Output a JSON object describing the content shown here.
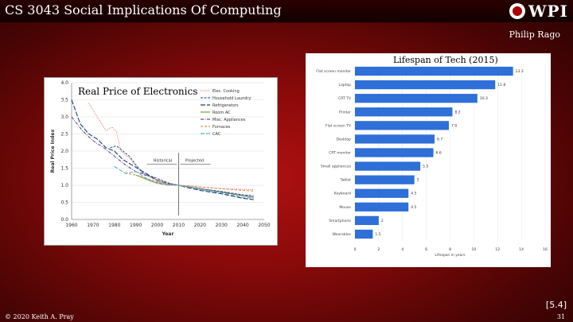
{
  "header": {
    "course_title": "CS 3043 Social Implications Of Computing",
    "logo_text": "WPI"
  },
  "author": "Philip Rago",
  "left_chart_caption": "Real Price of Electronics",
  "right_chart_caption": "Lifespan of Tech (2015)",
  "reference": "[5.4]",
  "footer": {
    "copyright": "© 2020 Keith A. Pray",
    "page_number": "31"
  },
  "chart_data": [
    {
      "type": "line",
      "title": "Real Price of Electronics",
      "xlabel": "Year",
      "ylabel": "Real Price Index",
      "xlim": [
        1960,
        2050
      ],
      "ylim": [
        0.0,
        4.0
      ],
      "x_ticks": [
        "1960",
        "1970",
        "1980",
        "1990",
        "2000",
        "2010",
        "2020",
        "2030",
        "2040",
        "2050"
      ],
      "y_ticks": [
        "0.0",
        "0.5",
        "1.0",
        "1.5",
        "2.0",
        "2.5",
        "3.0",
        "3.5",
        "4.0"
      ],
      "annotations": [
        "Historical",
        "Projected"
      ],
      "divider_x": 2010,
      "legend_position": "top-right",
      "series": [
        {
          "name": "Elec. Cooking",
          "color": "#e07060",
          "dash": "1,1.5",
          "x": [
            1968,
            1972,
            1976,
            1979,
            1981,
            1983,
            1987,
            1991,
            1995,
            1999,
            2003,
            2007,
            2010,
            2015,
            2020,
            2030,
            2040,
            2045
          ],
          "y": [
            3.4,
            3.0,
            2.6,
            2.7,
            2.55,
            2.0,
            1.8,
            1.5,
            1.3,
            1.15,
            1.05,
            1.0,
            1.0,
            0.98,
            0.95,
            0.9,
            0.88,
            0.87
          ]
        },
        {
          "name": "Household Laundry",
          "color": "#3a6b9a",
          "dash": "3,1.5",
          "x": [
            1978,
            1981,
            1984,
            1987,
            1990,
            1994,
            1998,
            2002,
            2006,
            2010,
            2015,
            2020,
            2030,
            2040,
            2045
          ],
          "y": [
            2.1,
            2.15,
            2.0,
            1.85,
            1.6,
            1.3,
            1.25,
            1.15,
            1.05,
            1.0,
            0.95,
            0.9,
            0.82,
            0.72,
            0.7
          ]
        },
        {
          "name": "Refrigerators",
          "color": "#1f3f6e",
          "dash": "6,2",
          "x": [
            1960,
            1964,
            1968,
            1972,
            1976,
            1980,
            1984,
            1988,
            1992,
            1996,
            2000,
            2005,
            2010,
            2015,
            2020,
            2030,
            2040,
            2045
          ],
          "y": [
            3.5,
            2.8,
            2.5,
            2.35,
            2.1,
            2.0,
            1.75,
            1.6,
            1.45,
            1.3,
            1.15,
            1.05,
            1.0,
            0.92,
            0.85,
            0.75,
            0.62,
            0.58
          ]
        },
        {
          "name": "Room AC",
          "color": "#7a9a3a",
          "dash": "",
          "x": [
            1990,
            1994,
            1998,
            2002,
            2006,
            2010,
            2015,
            2020,
            2030,
            2040,
            2045
          ],
          "y": [
            1.3,
            1.2,
            1.1,
            1.05,
            1.0,
            1.0,
            0.95,
            0.9,
            0.8,
            0.7,
            0.65
          ]
        },
        {
          "name": "Misc. Appliances",
          "color": "#6a4a9a",
          "dash": "4,1.5,1,1.5",
          "x": [
            1960,
            1965,
            1970,
            1975,
            1980,
            1985,
            1990,
            1995,
            2000,
            2005,
            2010,
            2015,
            2020,
            2030,
            2040,
            2045
          ],
          "y": [
            3.0,
            2.6,
            2.3,
            2.1,
            1.85,
            1.6,
            1.4,
            1.3,
            1.15,
            1.05,
            1.0,
            0.95,
            0.9,
            0.8,
            0.7,
            0.66
          ]
        },
        {
          "name": "Furnaces",
          "color": "#e0904a",
          "dash": "3,2",
          "x": [
            1985,
            1990,
            1995,
            2000,
            2005,
            2010,
            2015,
            2020,
            2030,
            2040,
            2045
          ],
          "y": [
            1.35,
            1.3,
            1.2,
            1.1,
            1.02,
            1.0,
            0.98,
            0.95,
            0.9,
            0.85,
            0.83
          ]
        },
        {
          "name": "CAC",
          "color": "#5ab4c8",
          "dash": "5,2",
          "x": [
            1980,
            1985,
            1990,
            1995,
            2000,
            2005,
            2010,
            2015,
            2020,
            2030,
            2040,
            2045
          ],
          "y": [
            1.55,
            1.35,
            1.4,
            1.2,
            1.05,
            1.0,
            1.0,
            0.95,
            0.88,
            0.78,
            0.65,
            0.62
          ]
        }
      ]
    },
    {
      "type": "bar",
      "orientation": "horizontal",
      "title": "Lifespan of Tech (2015)",
      "xlabel": "Lifespan in years",
      "xlim": [
        0,
        16
      ],
      "x_ticks": [
        "0",
        "2",
        "4",
        "6",
        "8",
        "10",
        "12",
        "14",
        "16"
      ],
      "bar_color": "#2e6fd8",
      "categories": [
        "Flat screen monitor",
        "Laptop",
        "CRT TV",
        "Printer",
        "Flat screen TV",
        "Desktop",
        "CRT monitor",
        "Small appliances",
        "Tablet",
        "Keyboard",
        "Mouse",
        "Smartphone",
        "Wearables"
      ],
      "values": [
        13.3,
        11.8,
        10.3,
        8.2,
        7.9,
        6.7,
        6.6,
        5.5,
        5,
        4.5,
        4.5,
        2,
        1.5
      ],
      "value_labels": [
        "13.3",
        "11.8",
        "10.3",
        "8.2",
        "7.9",
        "6.7",
        "6.6",
        "5.5",
        "5",
        "4.5",
        "4.5",
        "2",
        "1.5"
      ]
    }
  ]
}
